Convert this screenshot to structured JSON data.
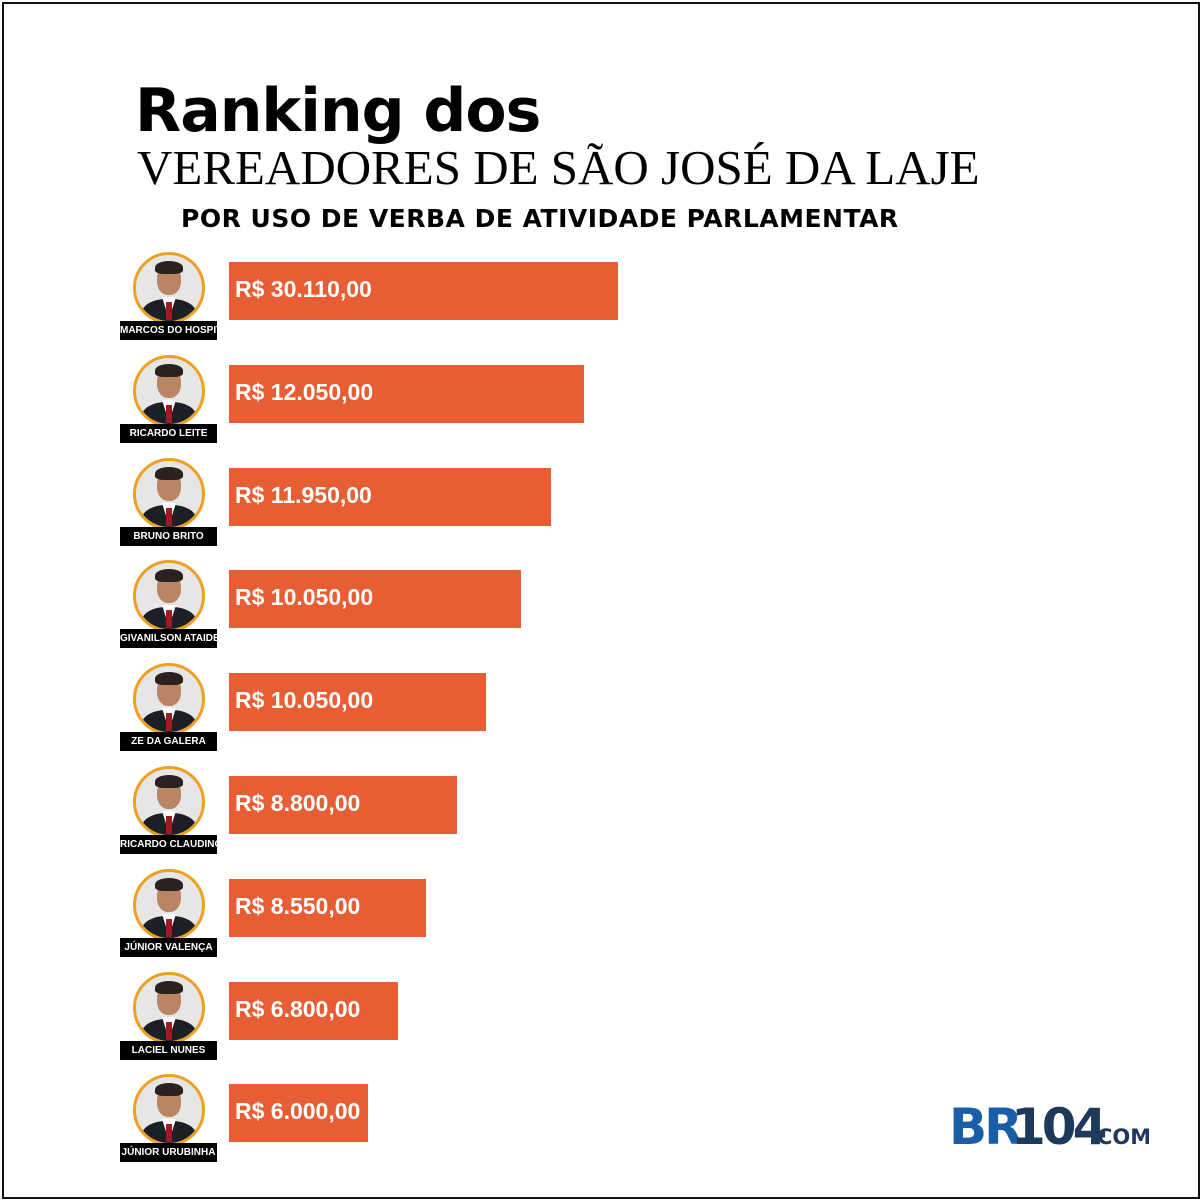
{
  "title_line1": "Ranking dos",
  "title_line2": "VEREADORES DE SÃO JOSÉ DA LAJE",
  "subtitle": "POR USO DE VERBA DE ATIVIDADE PARLAMENTAR",
  "colors": {
    "bar": "#e85e34",
    "avatar_ring": "#f0a020",
    "logo_blue": "#1a5ea8",
    "logo_dark": "#1d3a5c"
  },
  "logo": {
    "br": "BR",
    "num": "104",
    "dotcom": ".COM"
  },
  "chart_data": {
    "type": "bar",
    "orientation": "horizontal",
    "title": "Ranking dos VEREADORES DE SÃO JOSÉ DA LAJE",
    "subtitle": "POR USO DE VERBA DE ATIVIDADE PARLAMENTAR",
    "categories": [
      "MARCOS DO HOSPITAL",
      "RICARDO LEITE",
      "BRUNO BRITO",
      "GIVANILSON ATAIDE",
      "ZE DA GALERA",
      "RICARDO CLAUDINO",
      "JÚNIOR VALENÇA",
      "LACIEL NUNES",
      "JÚNIOR URUBINHA"
    ],
    "values": [
      30110,
      12050,
      11950,
      10050,
      10050,
      8800,
      8550,
      6800,
      6000
    ],
    "value_labels": [
      "R$ 30.110,00",
      "R$ 12.050,00",
      "R$ 11.950,00",
      "R$ 10.050,00",
      "R$ 10.050,00",
      "R$ 8.800,00",
      "R$ 8.550,00",
      "R$ 6.800,00",
      "R$ 6.000,00"
    ],
    "grid": false,
    "legend": "none"
  }
}
